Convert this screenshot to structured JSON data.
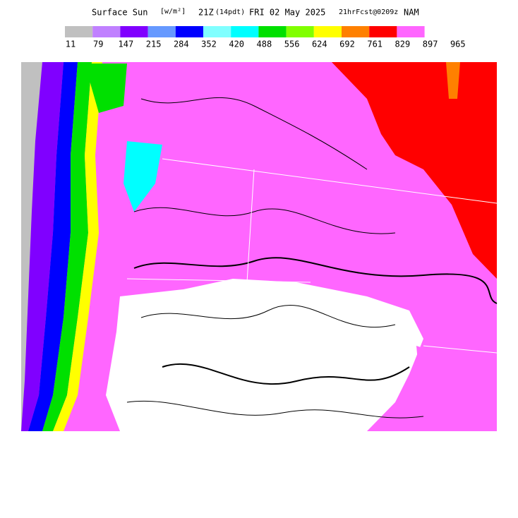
{
  "header": {
    "field": "Surface Sun",
    "units": "[w/m²]",
    "time": "21Z",
    "local_time": "(14pdt)",
    "date": "FRI 02 May 2025",
    "forecast": "21hrFcst@0209z",
    "model": "NAM"
  },
  "legend": {
    "colors": [
      "#c0c0c0",
      "#c080ff",
      "#8000ff",
      "#6699ff",
      "#0000ff",
      "#80ffff",
      "#00ffff",
      "#00e000",
      "#80ff00",
      "#ffff00",
      "#ff8000",
      "#ff0000",
      "#ff66ff"
    ],
    "ticks": [
      11,
      79,
      147,
      215,
      284,
      352,
      420,
      488,
      556,
      624,
      692,
      761,
      829,
      897,
      965
    ]
  }
}
